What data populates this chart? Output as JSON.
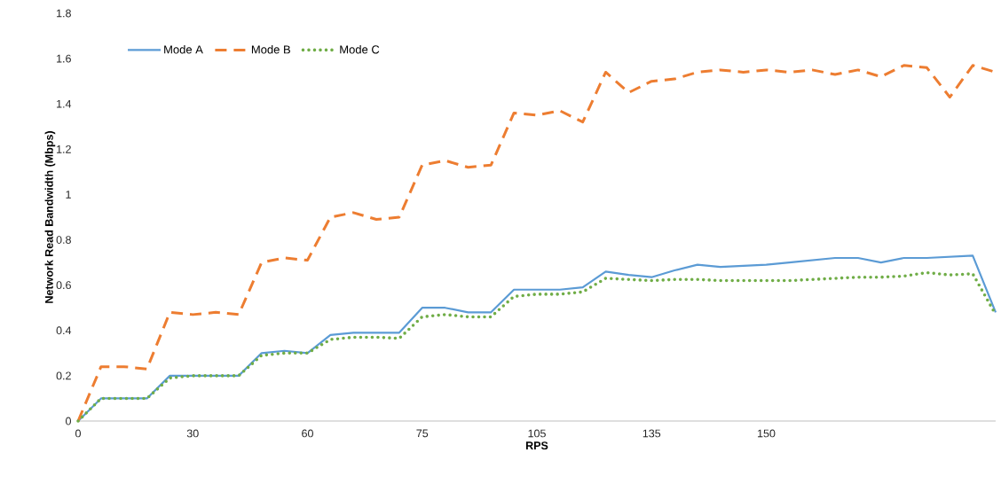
{
  "chart_data": {
    "type": "line",
    "xlabel": "RPS",
    "ylabel": "Network Read Bandwidth (Mbps)",
    "categories": [
      "0",
      null,
      null,
      null,
      null,
      "30",
      null,
      null,
      null,
      null,
      "60",
      null,
      null,
      null,
      null,
      "75",
      null,
      null,
      null,
      null,
      "105",
      null,
      null,
      null,
      null,
      "135",
      null,
      null,
      null,
      null,
      "150",
      null,
      null,
      null,
      null,
      null,
      null,
      null,
      null,
      null,
      null
    ],
    "ylim": [
      0,
      1.8
    ],
    "yticks": [
      0,
      0.2,
      0.4,
      0.6,
      0.8,
      1,
      1.2,
      1.4,
      1.6,
      1.8
    ],
    "grid": false,
    "legend": "top left",
    "marker": "none",
    "series": [
      {
        "name": "Mode A",
        "color": "#5b9bd5",
        "line_style": "solid",
        "values": [
          0,
          0.1,
          0.1,
          0.1,
          0.2,
          0.2,
          0.2,
          0.2,
          0.3,
          0.31,
          0.3,
          0.38,
          0.39,
          0.39,
          0.39,
          0.5,
          0.5,
          0.48,
          0.48,
          0.58,
          0.58,
          0.58,
          0.59,
          0.66,
          0.645,
          0.635,
          0.665,
          0.69,
          0.68,
          0.685,
          0.69,
          0.7,
          0.71,
          0.72,
          0.72,
          0.7,
          0.72,
          0.72,
          0.725,
          0.73,
          0.48
        ]
      },
      {
        "name": "Mode B",
        "color": "#ed7d31",
        "line_style": "dashed",
        "values": [
          0,
          0.24,
          0.24,
          0.23,
          0.48,
          0.47,
          0.48,
          0.47,
          0.7,
          0.72,
          0.71,
          0.9,
          0.92,
          0.89,
          0.9,
          1.13,
          1.15,
          1.12,
          1.13,
          1.36,
          1.35,
          1.37,
          1.32,
          1.54,
          1.45,
          1.5,
          1.51,
          1.54,
          1.55,
          1.54,
          1.55,
          1.54,
          1.55,
          1.53,
          1.55,
          1.52,
          1.57,
          1.56,
          1.43,
          1.57,
          1.54
        ]
      },
      {
        "name": "Mode C",
        "color": "#70ad47",
        "line_style": "dotted",
        "values": [
          0,
          0.1,
          0.1,
          0.1,
          0.19,
          0.2,
          0.2,
          0.2,
          0.29,
          0.3,
          0.3,
          0.36,
          0.37,
          0.37,
          0.365,
          0.46,
          0.47,
          0.46,
          0.46,
          0.55,
          0.56,
          0.56,
          0.57,
          0.63,
          0.625,
          0.62,
          0.625,
          0.625,
          0.62,
          0.62,
          0.62,
          0.62,
          0.625,
          0.63,
          0.635,
          0.635,
          0.64,
          0.655,
          0.645,
          0.65,
          0.47
        ]
      }
    ]
  }
}
